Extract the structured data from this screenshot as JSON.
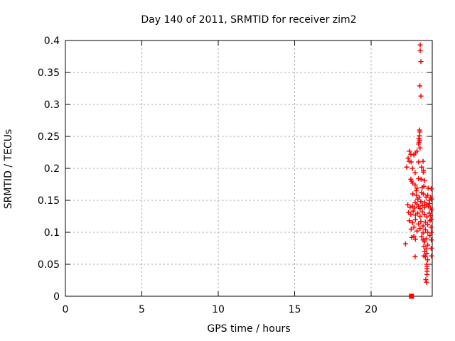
{
  "window": {
    "background": "#ffffff"
  },
  "chart_data": {
    "type": "scatter",
    "title": "Day 140 of 2011, SRMTID for receiver zim2",
    "xlabel": "GPS time / hours",
    "ylabel": "SRMTID / TECUs",
    "xlim": [
      0,
      24
    ],
    "ylim": [
      0,
      0.4
    ],
    "xticks": {
      "values": [
        0,
        5,
        10,
        15,
        20
      ],
      "labels": [
        "0",
        "5",
        "10",
        "15",
        "20"
      ]
    },
    "yticks": {
      "values": [
        0,
        0.05,
        0.1,
        0.15,
        0.2,
        0.25,
        0.3,
        0.35,
        0.4
      ],
      "labels": [
        "0",
        "0.05",
        "0.1",
        "0.15",
        "0.2",
        "0.25",
        "0.3",
        "0.35",
        "0.4"
      ]
    },
    "grid": true,
    "legend": "none",
    "colors": {
      "marker": "#ff0000",
      "grid": "#a8a8a8",
      "border": "#000000",
      "text": "#000000"
    },
    "series": [
      {
        "marker": "plus",
        "color": "#ff0000",
        "points": [
          [
            23.21,
            0.393
          ],
          [
            23.21,
            0.384
          ],
          [
            23.26,
            0.367
          ],
          [
            23.19,
            0.329
          ],
          [
            23.26,
            0.313
          ],
          [
            23.17,
            0.26
          ],
          [
            23.19,
            0.257
          ],
          [
            23.16,
            0.251
          ],
          [
            23.12,
            0.247
          ],
          [
            23.17,
            0.244
          ],
          [
            23.14,
            0.241
          ],
          [
            23.1,
            0.238
          ],
          [
            23.2,
            0.232
          ],
          [
            23.0,
            0.227
          ],
          [
            22.9,
            0.224
          ],
          [
            22.6,
            0.222
          ],
          [
            22.8,
            0.221
          ],
          [
            22.49,
            0.211
          ],
          [
            22.62,
            0.21
          ],
          [
            23.1,
            0.21
          ],
          [
            23.4,
            0.211
          ],
          [
            22.7,
            0.2
          ],
          [
            23.3,
            0.202
          ],
          [
            23.42,
            0.197
          ],
          [
            22.33,
            0.202
          ],
          [
            22.5,
            0.227
          ],
          [
            22.42,
            0.216
          ],
          [
            22.88,
            0.193
          ],
          [
            23.42,
            0.194
          ],
          [
            22.6,
            0.183
          ],
          [
            22.65,
            0.18
          ],
          [
            22.72,
            0.177
          ],
          [
            23.1,
            0.184
          ],
          [
            23.27,
            0.183
          ],
          [
            23.5,
            0.181
          ],
          [
            22.88,
            0.174
          ],
          [
            23.0,
            0.169
          ],
          [
            23.34,
            0.17
          ],
          [
            23.73,
            0.169
          ],
          [
            22.73,
            0.16
          ],
          [
            22.96,
            0.158
          ],
          [
            23.42,
            0.16
          ],
          [
            23.7,
            0.158
          ],
          [
            23.9,
            0.155
          ],
          [
            23.8,
            0.15
          ],
          [
            22.88,
            0.147
          ],
          [
            23.82,
            0.145
          ],
          [
            22.95,
            0.165
          ],
          [
            23.45,
            0.172
          ],
          [
            23.3,
            0.162
          ],
          [
            23.6,
            0.155
          ],
          [
            23.15,
            0.155
          ],
          [
            23.05,
            0.152
          ],
          [
            23.25,
            0.148
          ],
          [
            23.5,
            0.147
          ],
          [
            23.93,
            0.168
          ],
          [
            23.95,
            0.152
          ],
          [
            22.4,
            0.143
          ],
          [
            22.55,
            0.139
          ],
          [
            22.7,
            0.141
          ],
          [
            22.85,
            0.138
          ],
          [
            23.0,
            0.144
          ],
          [
            23.1,
            0.14
          ],
          [
            23.2,
            0.137
          ],
          [
            23.35,
            0.142
          ],
          [
            23.5,
            0.139
          ],
          [
            23.6,
            0.143
          ],
          [
            23.75,
            0.141
          ],
          [
            23.9,
            0.138
          ],
          [
            23.94,
            0.135
          ],
          [
            22.45,
            0.131
          ],
          [
            22.6,
            0.128
          ],
          [
            22.75,
            0.133
          ],
          [
            22.9,
            0.127
          ],
          [
            23.05,
            0.13
          ],
          [
            23.2,
            0.125
          ],
          [
            23.35,
            0.132
          ],
          [
            23.5,
            0.128
          ],
          [
            23.65,
            0.124
          ],
          [
            23.8,
            0.13
          ],
          [
            23.9,
            0.126
          ],
          [
            22.5,
            0.118
          ],
          [
            22.7,
            0.115
          ],
          [
            22.9,
            0.12
          ],
          [
            23.1,
            0.113
          ],
          [
            23.25,
            0.117
          ],
          [
            23.4,
            0.11
          ],
          [
            23.55,
            0.116
          ],
          [
            23.7,
            0.112
          ],
          [
            23.85,
            0.118
          ],
          [
            23.93,
            0.12
          ],
          [
            22.62,
            0.105
          ],
          [
            22.8,
            0.108
          ],
          [
            23.0,
            0.102
          ],
          [
            23.2,
            0.106
          ],
          [
            23.4,
            0.099
          ],
          [
            23.55,
            0.104
          ],
          [
            23.7,
            0.1
          ],
          [
            23.85,
            0.095
          ],
          [
            23.92,
            0.108
          ],
          [
            23.95,
            0.1
          ],
          [
            22.65,
            0.092
          ],
          [
            22.8,
            0.094
          ],
          [
            22.9,
            0.089
          ],
          [
            22.25,
            0.082
          ],
          [
            23.3,
            0.093
          ],
          [
            23.4,
            0.088
          ],
          [
            23.5,
            0.085
          ],
          [
            23.6,
            0.09
          ],
          [
            23.45,
            0.078
          ],
          [
            23.6,
            0.074
          ],
          [
            23.7,
            0.08
          ],
          [
            23.5,
            0.07
          ],
          [
            23.65,
            0.067
          ],
          [
            22.88,
            0.062
          ],
          [
            23.55,
            0.062
          ],
          [
            23.7,
            0.057
          ],
          [
            23.45,
            0.063
          ],
          [
            23.94,
            0.088
          ],
          [
            23.93,
            0.075
          ],
          [
            23.95,
            0.063
          ],
          [
            23.65,
            0.05
          ],
          [
            23.66,
            0.047
          ],
          [
            23.65,
            0.043
          ],
          [
            23.66,
            0.039
          ],
          [
            23.65,
            0.034
          ],
          [
            23.58,
            0.026
          ],
          [
            23.62,
            0.022
          ]
        ]
      },
      {
        "marker": "square",
        "color": "#ff0000",
        "points": [
          [
            22.64,
            0.0
          ]
        ]
      }
    ]
  }
}
